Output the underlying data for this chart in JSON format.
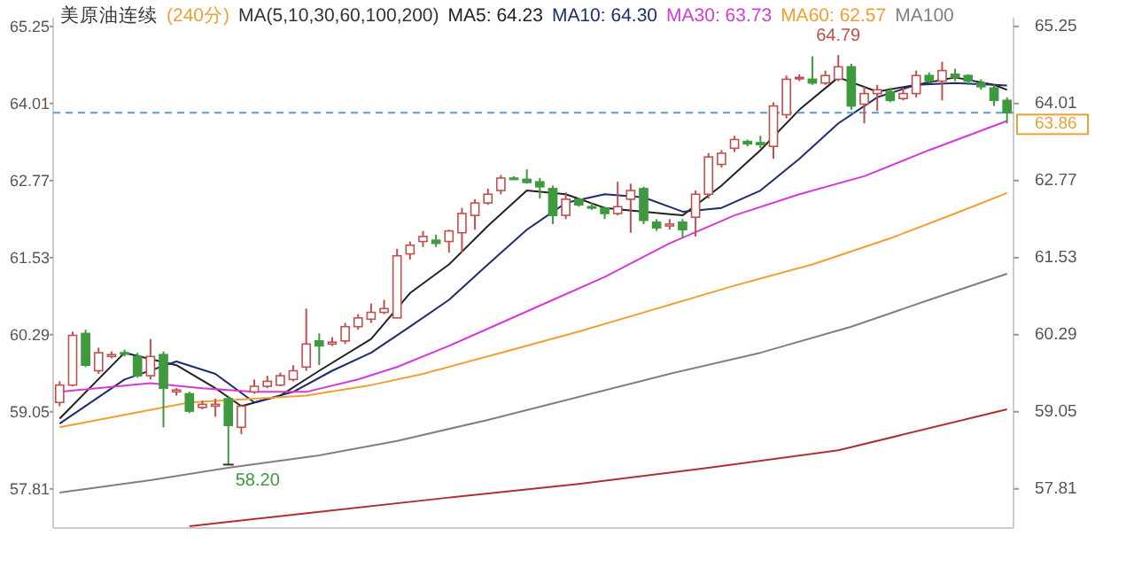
{
  "chart_data": {
    "type": "candlestick",
    "title": "美原油连续",
    "subtitle": "(240分)",
    "legend_title": "MA(5,10,30,60,100,200)",
    "legend": "top",
    "categories": [
      null,
      null,
      null,
      null,
      null,
      null,
      null,
      null,
      null,
      null,
      null,
      null,
      null,
      null,
      null,
      null,
      null,
      null,
      null,
      null,
      null,
      null,
      null,
      null,
      null,
      null,
      null,
      null,
      null,
      null,
      null,
      null,
      null,
      null,
      null,
      null,
      null,
      null,
      null,
      null,
      null,
      null,
      null,
      null,
      null,
      null,
      null,
      null,
      null,
      null,
      null,
      null,
      null,
      null,
      null,
      null,
      null,
      null,
      null,
      null,
      null,
      null,
      null,
      null,
      null,
      null,
      null,
      null,
      null,
      null,
      null,
      null,
      null,
      null
    ],
    "ohlc": [
      [
        59.2,
        59.54,
        59.14,
        59.48
      ],
      [
        59.48,
        60.34,
        59.46,
        60.28
      ],
      [
        60.31,
        60.37,
        59.77,
        59.8
      ],
      [
        59.71,
        60.08,
        59.66,
        60.0
      ],
      [
        59.94,
        60.02,
        59.91,
        59.97
      ],
      [
        60.0,
        60.05,
        59.94,
        59.98
      ],
      [
        59.94,
        60.0,
        59.6,
        59.63
      ],
      [
        59.63,
        60.22,
        59.57,
        59.94
      ],
      [
        59.97,
        60.02,
        58.8,
        59.43
      ],
      [
        59.37,
        59.43,
        59.31,
        59.4
      ],
      [
        59.34,
        59.37,
        59.03,
        59.06
      ],
      [
        59.12,
        59.23,
        59.09,
        59.17
      ],
      [
        59.14,
        59.26,
        58.97,
        59.17
      ],
      [
        59.26,
        59.29,
        58.2,
        58.83
      ],
      [
        58.8,
        59.17,
        58.69,
        59.14
      ],
      [
        59.37,
        59.57,
        59.34,
        59.46
      ],
      [
        59.46,
        59.63,
        59.43,
        59.54
      ],
      [
        59.48,
        59.68,
        59.46,
        59.63
      ],
      [
        59.57,
        59.8,
        59.54,
        59.71
      ],
      [
        59.77,
        60.71,
        59.71,
        60.14
      ],
      [
        60.19,
        60.31,
        59.8,
        60.11
      ],
      [
        60.14,
        60.25,
        60.11,
        60.17
      ],
      [
        60.19,
        60.48,
        60.14,
        60.42
      ],
      [
        60.42,
        60.62,
        60.37,
        60.56
      ],
      [
        60.54,
        60.79,
        60.48,
        60.65
      ],
      [
        60.65,
        60.85,
        60.62,
        60.71
      ],
      [
        60.56,
        61.67,
        60.56,
        61.56
      ],
      [
        61.59,
        61.79,
        61.5,
        61.73
      ],
      [
        61.79,
        61.96,
        61.7,
        61.87
      ],
      [
        61.81,
        61.9,
        61.7,
        61.76
      ],
      [
        61.79,
        61.98,
        61.61,
        61.96
      ],
      [
        61.93,
        62.33,
        61.61,
        62.24
      ],
      [
        62.21,
        62.47,
        61.98,
        62.41
      ],
      [
        62.41,
        62.64,
        62.38,
        62.55
      ],
      [
        62.61,
        62.86,
        62.55,
        62.81
      ],
      [
        62.81,
        62.84,
        62.78,
        62.79
      ],
      [
        62.79,
        62.95,
        62.72,
        62.74
      ],
      [
        62.75,
        62.81,
        62.48,
        62.67
      ],
      [
        62.64,
        62.69,
        62.07,
        62.21
      ],
      [
        62.21,
        62.58,
        62.15,
        62.47
      ],
      [
        62.47,
        62.49,
        62.35,
        62.38
      ],
      [
        62.35,
        62.41,
        62.3,
        62.33
      ],
      [
        62.33,
        62.35,
        62.15,
        62.24
      ],
      [
        62.24,
        62.75,
        62.21,
        62.35
      ],
      [
        62.47,
        62.72,
        61.93,
        62.61
      ],
      [
        62.64,
        62.67,
        62.07,
        62.13
      ],
      [
        62.1,
        62.15,
        61.96,
        62.01
      ],
      [
        62.04,
        62.15,
        61.98,
        62.07
      ],
      [
        62.1,
        62.15,
        61.84,
        61.98
      ],
      [
        62.18,
        62.61,
        61.87,
        62.55
      ],
      [
        62.55,
        63.21,
        62.48,
        63.15
      ],
      [
        63.03,
        63.26,
        62.98,
        63.21
      ],
      [
        63.29,
        63.49,
        63.23,
        63.43
      ],
      [
        63.4,
        63.43,
        63.32,
        63.36
      ],
      [
        63.38,
        63.49,
        63.29,
        63.35
      ],
      [
        63.32,
        64.03,
        63.12,
        63.97
      ],
      [
        63.83,
        64.46,
        63.77,
        64.4
      ],
      [
        64.41,
        64.48,
        64.37,
        64.43
      ],
      [
        64.4,
        64.77,
        64.31,
        64.34
      ],
      [
        64.34,
        64.54,
        64.31,
        64.46
      ],
      [
        64.4,
        64.79,
        64.37,
        64.6
      ],
      [
        64.6,
        64.65,
        63.91,
        63.97
      ],
      [
        64.0,
        64.28,
        63.69,
        64.17
      ],
      [
        64.17,
        64.31,
        63.89,
        64.23
      ],
      [
        64.2,
        64.26,
        64.03,
        64.06
      ],
      [
        64.09,
        64.26,
        64.06,
        64.17
      ],
      [
        64.17,
        64.54,
        64.11,
        64.46
      ],
      [
        64.46,
        64.51,
        64.34,
        64.37
      ],
      [
        64.37,
        64.68,
        64.06,
        64.54
      ],
      [
        64.48,
        64.57,
        64.37,
        64.43
      ],
      [
        64.46,
        64.48,
        64.31,
        64.37
      ],
      [
        64.34,
        64.4,
        64.23,
        64.28
      ],
      [
        64.26,
        64.31,
        63.97,
        64.06
      ],
      [
        64.06,
        64.11,
        63.69,
        63.86
      ]
    ],
    "ylim": [
      57.18,
      65.39
    ],
    "yticks": [
      57.81,
      59.05,
      60.29,
      61.53,
      62.77,
      64.01,
      65.25
    ],
    "y2lim": [
      57.18,
      65.39
    ],
    "y2ticks": [
      57.81,
      59.05,
      60.29,
      61.53,
      62.77,
      64.01,
      65.25
    ],
    "ref_lines": [
      {
        "axis": "y",
        "value": 63.86,
        "label": "63.86",
        "color": "#5b9bd5",
        "line_style": "dashed"
      }
    ],
    "annotations": [
      {
        "text": "64.79",
        "y": 64.79
      },
      {
        "text": "58.20",
        "y": 58.2
      }
    ],
    "series": [
      {
        "name": "MA5: 64.23",
        "type": "line",
        "color": "#222222",
        "values": [
          58.94,
          null,
          null,
          null,
          null,
          60.0,
          null,
          null,
          null,
          59.8,
          null,
          null,
          59.43,
          null,
          59.14,
          null,
          null,
          59.31,
          null,
          null,
          59.71,
          null,
          null,
          null,
          60.22,
          null,
          null,
          60.96,
          null,
          null,
          61.42,
          null,
          null,
          62.04,
          null,
          null,
          62.61,
          null,
          null,
          62.55,
          null,
          null,
          62.33,
          null,
          null,
          62.27,
          null,
          null,
          62.21,
          null,
          null,
          62.69,
          null,
          null,
          63.26,
          null,
          null,
          63.91,
          null,
          null,
          64.43,
          null,
          null,
          64.2,
          null,
          null,
          64.31,
          null,
          null,
          64.43,
          null,
          null,
          64.31,
          64.23
        ]
      },
      {
        "name": "MA10: 64.30",
        "type": "line",
        "color": "#1f2d6b",
        "values": [
          58.86,
          null,
          null,
          null,
          null,
          59.57,
          null,
          null,
          null,
          59.86,
          null,
          null,
          59.66,
          null,
          null,
          59.2,
          null,
          null,
          59.37,
          null,
          null,
          59.71,
          null,
          null,
          60.0,
          null,
          null,
          60.42,
          null,
          null,
          60.85,
          null,
          null,
          61.42,
          null,
          null,
          61.98,
          null,
          null,
          62.41,
          null,
          null,
          62.55,
          null,
          null,
          62.5,
          null,
          null,
          62.27,
          null,
          null,
          62.33,
          null,
          null,
          62.61,
          null,
          null,
          63.12,
          null,
          null,
          63.69,
          null,
          null,
          64.11,
          null,
          null,
          64.31,
          null,
          null,
          64.34,
          null,
          null,
          64.31,
          64.3
        ]
      },
      {
        "name": "MA30: 63.73",
        "type": "line",
        "color": "#d63ad6",
        "values": [
          59.37,
          null,
          null,
          null,
          null,
          null,
          null,
          59.51,
          null,
          null,
          null,
          59.43,
          null,
          null,
          null,
          59.37,
          null,
          null,
          null,
          59.37,
          null,
          null,
          null,
          59.57,
          null,
          null,
          59.77,
          null,
          null,
          null,
          60.11,
          null,
          null,
          null,
          60.48,
          null,
          null,
          null,
          60.85,
          null,
          null,
          null,
          61.22,
          null,
          null,
          null,
          null,
          61.76,
          null,
          null,
          null,
          null,
          62.21,
          null,
          null,
          null,
          null,
          62.55,
          null,
          null,
          null,
          null,
          62.84,
          null,
          null,
          null,
          null,
          63.26,
          null,
          null,
          null,
          null,
          null,
          63.73
        ]
      },
      {
        "name": "MA60: 62.57",
        "type": "line",
        "color": "#f0a030",
        "values": [
          58.8,
          null,
          null,
          null,
          null,
          59.0,
          null,
          null,
          null,
          null,
          59.2,
          null,
          null,
          null,
          null,
          59.26,
          null,
          null,
          null,
          59.31,
          null,
          null,
          null,
          null,
          59.48,
          null,
          null,
          null,
          59.66,
          null,
          null,
          null,
          null,
          null,
          60.0,
          null,
          null,
          null,
          null,
          null,
          60.34,
          null,
          null,
          null,
          null,
          null,
          60.71,
          null,
          null,
          null,
          null,
          null,
          61.08,
          null,
          null,
          null,
          null,
          null,
          61.42,
          null,
          null,
          null,
          null,
          null,
          61.84,
          null,
          null,
          null,
          null,
          62.24,
          null,
          null,
          null,
          62.57
        ]
      },
      {
        "name": "MA100",
        "type": "line",
        "color": "#808080",
        "values": [
          57.75,
          null,
          null,
          null,
          null,
          null,
          null,
          57.95,
          null,
          null,
          null,
          null,
          null,
          58.15,
          null,
          null,
          null,
          null,
          null,
          null,
          58.35,
          null,
          null,
          null,
          null,
          null,
          58.58,
          null,
          null,
          null,
          null,
          null,
          null,
          58.92,
          null,
          null,
          null,
          null,
          null,
          null,
          59.29,
          null,
          null,
          null,
          null,
          null,
          null,
          59.66,
          null,
          null,
          null,
          null,
          null,
          null,
          60.0,
          null,
          null,
          null,
          null,
          null,
          null,
          60.42,
          null,
          null,
          null,
          null,
          null,
          60.85,
          null,
          null,
          null,
          null,
          null,
          61.27
        ]
      },
      {
        "type": "line",
        "color": "#b03030",
        "values": [
          null,
          null,
          null,
          null,
          null,
          null,
          null,
          null,
          null,
          null,
          57.21,
          null,
          null,
          null,
          null,
          null,
          null,
          null,
          null,
          null,
          57.44,
          null,
          null,
          null,
          null,
          null,
          null,
          null,
          null,
          null,
          57.67,
          null,
          null,
          null,
          null,
          null,
          null,
          null,
          null,
          null,
          57.89,
          null,
          null,
          null,
          null,
          null,
          null,
          null,
          null,
          null,
          58.15,
          null,
          null,
          null,
          null,
          null,
          null,
          null,
          null,
          null,
          58.43,
          null,
          null,
          null,
          null,
          null,
          null,
          null,
          null,
          null,
          null,
          null,
          null,
          59.09
        ]
      }
    ]
  }
}
